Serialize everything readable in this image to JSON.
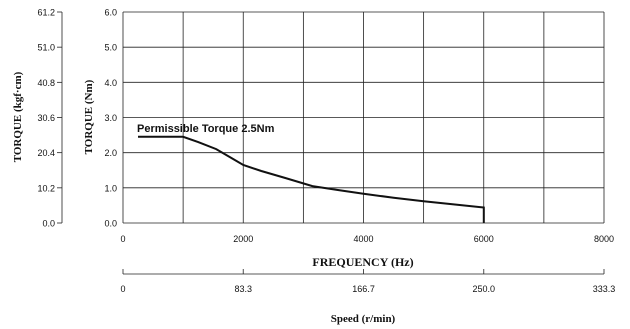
{
  "chart_data": {
    "type": "line",
    "title": "",
    "xlabel": "FREQUENCY (Hz)",
    "ylabel": "TORQUE (Nm)",
    "secondary_ylabel": "TORQUE (kgf·cm)",
    "secondary_xlabel": "Speed (r/min)",
    "xlim": [
      0,
      8000
    ],
    "ylim": [
      0,
      6
    ],
    "x_ticks": [
      0,
      2000,
      4000,
      6000,
      8000
    ],
    "x_tick_labels": [
      "0",
      "2000",
      "4000",
      "6000",
      "8000"
    ],
    "y_ticks": [
      0,
      1,
      2,
      3,
      4,
      5,
      6
    ],
    "y_tick_labels": [
      "0.0",
      "1.0",
      "2.0",
      "3.0",
      "4.0",
      "5.0",
      "6.0"
    ],
    "kgf_tick_labels": [
      "0.0",
      "10.2",
      "20.4",
      "30.6",
      "40.8",
      "51.0",
      "61.2"
    ],
    "speed_ticks": [
      0,
      83.3,
      166.7,
      250.0,
      333.3
    ],
    "speed_tick_labels": [
      "0",
      "83.3",
      "166.7",
      "250.0",
      "333.3"
    ],
    "grid": true,
    "annotation": "Permissible Torque 2.5Nm",
    "series": [
      {
        "x": [
          250,
          1000,
          1250,
          1550,
          1800,
          2000,
          2300,
          2700,
          3150,
          3600,
          4000,
          4500,
          5000,
          5500,
          6000,
          6000
        ],
        "y": [
          2.45,
          2.45,
          2.3,
          2.1,
          1.85,
          1.65,
          1.48,
          1.28,
          1.05,
          0.93,
          0.83,
          0.72,
          0.62,
          0.53,
          0.44,
          0.0
        ]
      }
    ]
  }
}
